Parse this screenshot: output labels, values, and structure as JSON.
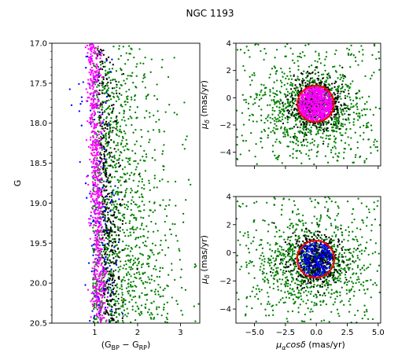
{
  "figure": {
    "title": "NGC 1193"
  },
  "chart_data": [
    {
      "id": "cmd",
      "type": "scatter",
      "xlabel": "(G_BP − G_RP)",
      "ylabel": "G",
      "xlim": [
        0.0,
        3.45
      ],
      "ylim": [
        20.5,
        17.0
      ],
      "y_inverted": true,
      "xticks": [
        1,
        2,
        3
      ],
      "yticks": [
        17.0,
        17.5,
        18.0,
        18.5,
        19.0,
        19.5,
        20.0,
        20.5
      ],
      "ytick_labels": [
        "17.0",
        "17.5",
        "18.0",
        "18.5",
        "19.0",
        "19.5",
        "20.0",
        "20.5"
      ],
      "series": [
        {
          "color": "#008000",
          "count": 1300,
          "distribution": "field stars spread over colour 0.3-3.4, denser at faint G"
        },
        {
          "color": "#000000",
          "count": 350,
          "distribution": "concentrated near colour 1.0-1.8"
        },
        {
          "color": "#0000ff",
          "count": 150,
          "distribution": "scattered, mostly colour 0.8-1.6"
        },
        {
          "color": "#ff00ff",
          "count": 650,
          "distribution": "cluster sequence, colour ~0.95 at G=17 to ~1.15 at G=20.5"
        }
      ]
    },
    {
      "id": "vpd-top",
      "type": "scatter",
      "xlabel": "",
      "ylabel": "μδ (mas/yr)",
      "xlim": [
        -6.5,
        5.2
      ],
      "ylim": [
        -5.0,
        4.0
      ],
      "xticks": [
        -5.0,
        -2.5,
        0.0,
        2.5,
        5.0
      ],
      "xtick_labels": [],
      "yticks": [
        -4,
        -2,
        0,
        2,
        4
      ],
      "ytick_labels": [
        "−4",
        "−2",
        "0",
        "2",
        "4"
      ],
      "circle": {
        "center": [
          -0.05,
          -0.45
        ],
        "radius": 1.4,
        "color": "#ff0000"
      },
      "series": [
        {
          "color": "#008000",
          "count": 1100,
          "distribution": "broad field around (-0.3,-0.8)"
        },
        {
          "color": "#000000",
          "count": 450,
          "distribution": "concentrated around the circle"
        },
        {
          "color": "#ff00ff",
          "count": 650,
          "distribution": "inside circle"
        }
      ]
    },
    {
      "id": "vpd-bottom",
      "type": "scatter",
      "xlabel": "μαcosδ (mas/yr)",
      "ylabel": "μδ (mas/yr)",
      "xlim": [
        -6.5,
        5.2
      ],
      "ylim": [
        -5.0,
        4.0
      ],
      "xticks": [
        -5.0,
        -2.5,
        0.0,
        2.5,
        5.0
      ],
      "xtick_labels": [
        "−5.0",
        "−2.5",
        "0.0",
        "2.5",
        "5.0"
      ],
      "yticks": [
        -4,
        -2,
        0,
        2,
        4
      ],
      "ytick_labels": [
        "−4",
        "−2",
        "0",
        "2",
        "4"
      ],
      "circle": {
        "center": [
          -0.05,
          -0.45
        ],
        "radius": 1.4,
        "color": "#ff0000"
      },
      "series": [
        {
          "color": "#008000",
          "count": 1100,
          "distribution": "broad field around (-0.3,-0.8)"
        },
        {
          "color": "#000000",
          "count": 450,
          "distribution": "concentrated around the circle"
        },
        {
          "color": "#0000ff",
          "count": 220,
          "distribution": "inside circle"
        }
      ]
    }
  ],
  "colors": {
    "field": "#008000",
    "black": "#000000",
    "blue": "#0000ff",
    "member": "#ff00ff",
    "circle": "#ff0000"
  }
}
